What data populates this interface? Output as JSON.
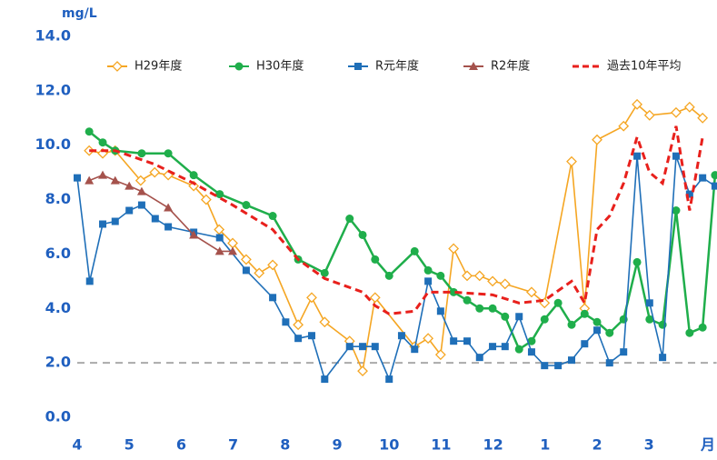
{
  "chart_data": {
    "type": "line",
    "y_unit": "mg/L",
    "x_unit": "月",
    "xlim": [
      0,
      12.3
    ],
    "ylim": [
      0,
      14
    ],
    "xticks": [
      {
        "value": 0,
        "label": "4"
      },
      {
        "value": 1,
        "label": "5"
      },
      {
        "value": 2,
        "label": "6"
      },
      {
        "value": 3,
        "label": "7"
      },
      {
        "value": 4,
        "label": "8"
      },
      {
        "value": 5,
        "label": "9"
      },
      {
        "value": 6,
        "label": "10"
      },
      {
        "value": 7,
        "label": "11"
      },
      {
        "value": 8,
        "label": "12"
      },
      {
        "value": 9,
        "label": "1"
      },
      {
        "value": 10,
        "label": "2"
      },
      {
        "value": 11,
        "label": "3"
      }
    ],
    "yticks": [
      {
        "value": 0,
        "label": "0.0"
      },
      {
        "value": 2,
        "label": "2.0"
      },
      {
        "value": 4,
        "label": "4.0"
      },
      {
        "value": 6,
        "label": "6.0"
      },
      {
        "value": 8,
        "label": "8.0"
      },
      {
        "value": 10,
        "label": "10.0"
      },
      {
        "value": 12,
        "label": "12.0"
      },
      {
        "value": 14,
        "label": "14.0"
      }
    ],
    "reference_line": 2,
    "series": [
      {
        "name": "H29年度",
        "color": "#f5a623",
        "marker": "diamond",
        "dash": false,
        "x": [
          0.23,
          0.49,
          0.73,
          1.22,
          1.49,
          1.75,
          2.24,
          2.48,
          2.73,
          2.99,
          3.25,
          3.5,
          3.76,
          4.25,
          4.51,
          4.76,
          5.24,
          5.49,
          5.73,
          6.49,
          6.75,
          6.99,
          7.24,
          7.5,
          7.74,
          7.99,
          8.23,
          8.74,
          8.99,
          9.51,
          9.76,
          10.0,
          10.51,
          10.77,
          11.01,
          11.52,
          11.78,
          12.03
        ],
        "values": [
          9.8,
          9.7,
          9.8,
          8.7,
          9.0,
          8.9,
          8.5,
          8.0,
          6.9,
          6.4,
          5.8,
          5.3,
          5.6,
          3.4,
          4.4,
          3.5,
          2.8,
          1.7,
          4.4,
          2.6,
          2.9,
          2.3,
          6.2,
          5.2,
          5.2,
          5.0,
          4.9,
          4.6,
          4.2,
          9.4,
          4.0,
          10.2,
          10.7,
          11.5,
          11.1,
          11.2,
          11.4,
          11.0
        ]
      },
      {
        "name": "H30年度",
        "color": "#1fae4b",
        "marker": "circle",
        "dash": false,
        "x": [
          0.23,
          0.49,
          0.73,
          1.24,
          1.75,
          2.24,
          2.74,
          3.25,
          3.76,
          4.25,
          4.76,
          5.24,
          5.49,
          5.73,
          6.0,
          6.49,
          6.75,
          6.99,
          7.24,
          7.5,
          7.74,
          7.99,
          8.23,
          8.5,
          8.74,
          8.99,
          9.25,
          9.51,
          9.76,
          10.0,
          10.24,
          10.51,
          10.77,
          11.01,
          11.26,
          11.52,
          11.78,
          12.03,
          12.27
        ],
        "values": [
          10.5,
          10.1,
          9.8,
          9.7,
          9.7,
          8.9,
          8.2,
          7.8,
          7.4,
          5.8,
          5.3,
          7.3,
          6.7,
          5.8,
          5.2,
          6.1,
          5.4,
          5.2,
          4.6,
          4.3,
          4.0,
          4.0,
          3.7,
          2.5,
          2.8,
          3.6,
          4.2,
          3.4,
          3.8,
          3.5,
          3.1,
          3.6,
          5.7,
          3.6,
          3.4,
          7.6,
          3.1,
          3.3,
          8.9
        ]
      },
      {
        "name": "R元年度",
        "color": "#1f6fb8",
        "marker": "square",
        "dash": false,
        "x": [
          0,
          0.24,
          0.49,
          0.73,
          1.0,
          1.24,
          1.5,
          1.75,
          2.24,
          2.74,
          3.25,
          3.76,
          4.01,
          4.25,
          4.51,
          4.76,
          5.24,
          5.49,
          5.73,
          6.0,
          6.24,
          6.49,
          6.75,
          6.99,
          7.24,
          7.5,
          7.74,
          7.99,
          8.23,
          8.5,
          8.74,
          8.99,
          9.25,
          9.51,
          9.76,
          10.0,
          10.24,
          10.51,
          10.77,
          11.01,
          11.26,
          11.52,
          11.78,
          12.03,
          12.27
        ],
        "values": [
          8.8,
          5.0,
          7.1,
          7.2,
          7.6,
          7.8,
          7.3,
          7.0,
          6.8,
          6.6,
          5.4,
          4.4,
          3.5,
          2.9,
          3.0,
          1.4,
          2.6,
          2.6,
          2.6,
          1.4,
          3.0,
          2.5,
          5.0,
          3.9,
          2.8,
          2.8,
          2.2,
          2.6,
          2.6,
          3.7,
          2.4,
          1.9,
          1.9,
          2.1,
          2.7,
          3.2,
          2.0,
          2.4,
          9.6,
          4.2,
          2.2,
          9.6,
          8.2,
          8.8,
          8.5
        ]
      },
      {
        "name": "R2年度",
        "color": "#a5524c",
        "marker": "triangle",
        "dash": false,
        "x": [
          0.23,
          0.49,
          0.73,
          1.0,
          1.24,
          1.75,
          2.24,
          2.74,
          2.99
        ],
        "values": [
          8.7,
          8.9,
          8.7,
          8.5,
          8.3,
          7.7,
          6.7,
          6.1,
          6.1
        ]
      },
      {
        "name": "過去10年平均",
        "color": "#e8201c",
        "marker": "none",
        "dash": true,
        "x": [
          0.23,
          0.73,
          1.49,
          2.24,
          2.99,
          3.76,
          4.25,
          4.76,
          5.49,
          5.73,
          6.0,
          6.49,
          6.75,
          7.24,
          7.99,
          8.5,
          8.99,
          9.51,
          9.76,
          10.0,
          10.24,
          10.51,
          10.77,
          11.01,
          11.26,
          11.52,
          11.78,
          12.03
        ],
        "values": [
          9.8,
          9.8,
          9.3,
          8.6,
          7.8,
          6.9,
          5.8,
          5.1,
          4.6,
          4.1,
          3.8,
          3.9,
          4.6,
          4.6,
          4.5,
          4.2,
          4.3,
          5.0,
          4.2,
          6.9,
          7.4,
          8.6,
          10.3,
          9.0,
          8.6,
          10.7,
          7.6,
          10.3
        ]
      }
    ]
  }
}
